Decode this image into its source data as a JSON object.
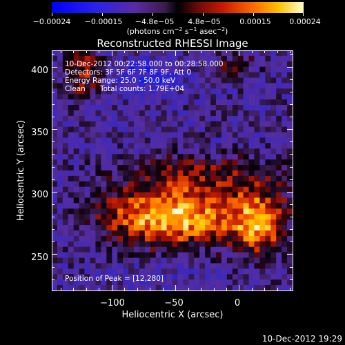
{
  "colorbar": {
    "ticks": [
      "−0.00024",
      "−0.00015",
      "−4.8e−05",
      "4.8e−05",
      "0.00015",
      "0.00024"
    ],
    "units_prefix": "(photons cm",
    "units_exp1": "−2",
    "units_mid": " s",
    "units_exp2": "−1",
    "units_mid2": " asec",
    "units_exp3": "−2",
    "units_suffix": ")"
  },
  "plot": {
    "title": "Reconstructed RHESSI Image",
    "xlabel": "Heliocentric X (arcsec)",
    "ylabel": "Heliocentric Y (arcsec)",
    "xticks": [
      "−100",
      "−50",
      "0"
    ],
    "yticks": [
      "400",
      "350",
      "300",
      "250"
    ],
    "xlim": [
      -147,
      42
    ],
    "ylim": [
      221,
      413
    ],
    "xtick_values": [
      -100,
      -50,
      0
    ],
    "ytick_values": [
      400,
      350,
      300,
      250
    ]
  },
  "annotations": {
    "time_range": "10-Dec-2012 00:22:58.000 to 00:28:58.000",
    "detectors": "Detectors: 3F 5F 6F 7F 8F 9F, Att 0",
    "energy_range": "Energy Range: 25.0 - 50.0 keV",
    "clean": "Clean",
    "total_counts": "Total counts: 1.79E+04",
    "peak": "Position of Peak = [12,280]"
  },
  "footer": {
    "timestamp": "10-Dec-2012 19:29"
  },
  "colors": {
    "background": "#000000",
    "foreground": "#ffffff"
  }
}
